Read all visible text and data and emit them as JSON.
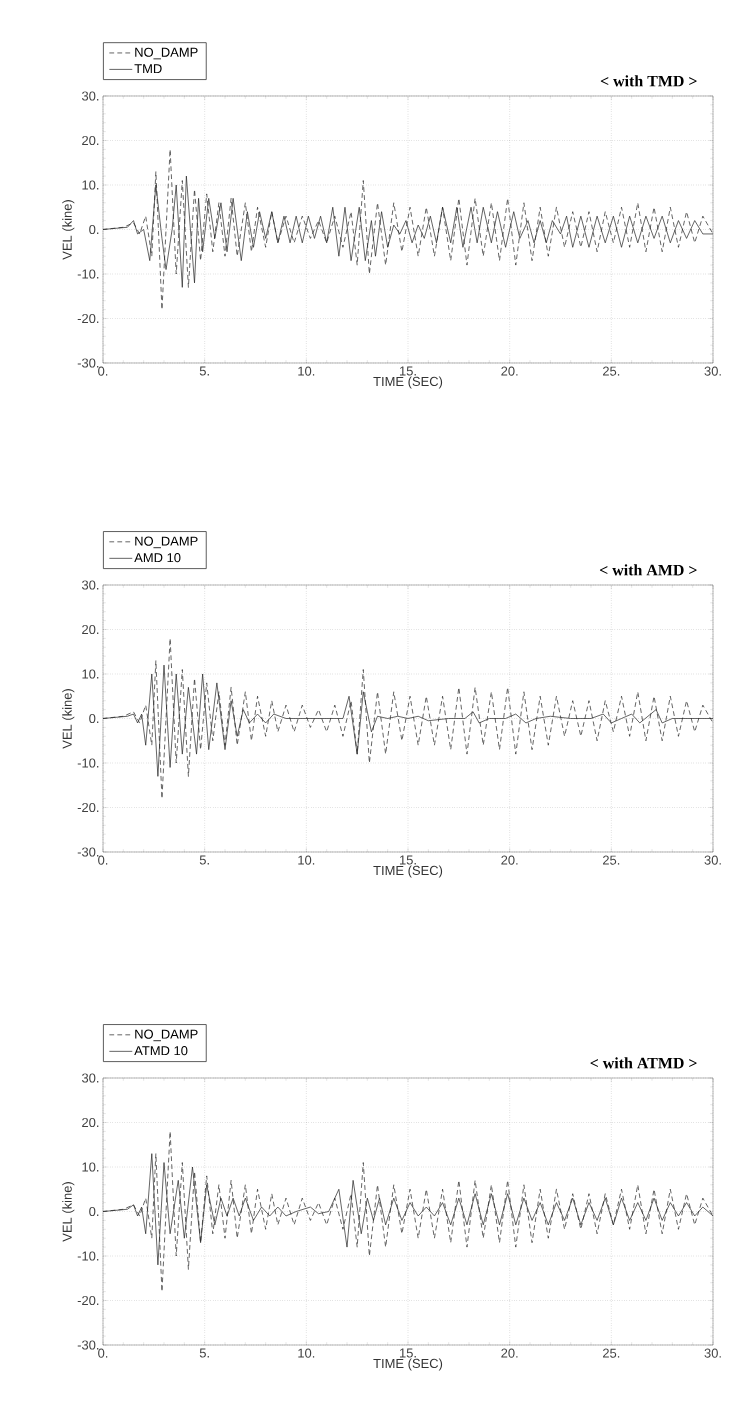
{
  "chart_data": [
    {
      "type": "line",
      "title": "< with TMD >",
      "xlabel": "TIME (SEC)",
      "ylabel": "VEL (kine)",
      "xlim": [
        0,
        30
      ],
      "ylim": [
        -30,
        30
      ],
      "xticks": [
        {
          "value": 0,
          "label": "0."
        },
        {
          "value": 5,
          "label": "5."
        },
        {
          "value": 10,
          "label": "10."
        },
        {
          "value": 15,
          "label": "15."
        },
        {
          "value": 20,
          "label": "20."
        },
        {
          "value": 25,
          "label": "25."
        },
        {
          "value": 30,
          "label": "30."
        }
      ],
      "yticks": [
        {
          "value": -30,
          "label": "-30."
        },
        {
          "value": -20,
          "label": "-20."
        },
        {
          "value": -10,
          "label": "-10."
        },
        {
          "value": 0,
          "label": "0."
        },
        {
          "value": 10,
          "label": "10."
        },
        {
          "value": 20,
          "label": "20."
        },
        {
          "value": 30,
          "label": "30."
        }
      ],
      "grid": true,
      "legend": "top left",
      "series": [
        {
          "name": "NO_DAMP",
          "color": "#222222",
          "line_style": "dashed",
          "x": [
            0,
            1.0,
            1.5,
            1.8,
            2.1,
            2.4,
            2.6,
            2.9,
            3.3,
            3.6,
            3.9,
            4.2,
            4.5,
            4.8,
            5.1,
            5.4,
            5.7,
            6.0,
            6.3,
            6.6,
            7.0,
            7.3,
            7.6,
            8.0,
            8.3,
            8.6,
            9.0,
            9.4,
            9.8,
            10.2,
            10.6,
            11.0,
            11.4,
            11.8,
            12.2,
            12.5,
            12.8,
            13.1,
            13.5,
            13.9,
            14.3,
            14.7,
            15.1,
            15.5,
            15.9,
            16.3,
            16.7,
            17.1,
            17.5,
            17.9,
            18.3,
            18.7,
            19.1,
            19.5,
            19.9,
            20.3,
            20.7,
            21.1,
            21.5,
            21.9,
            22.3,
            22.7,
            23.1,
            23.5,
            23.9,
            24.3,
            24.7,
            25.1,
            25.5,
            25.9,
            26.3,
            26.7,
            27.1,
            27.5,
            27.9,
            28.3,
            28.7,
            29.1,
            29.5,
            30
          ],
          "values": [
            0,
            0.5,
            1.5,
            -1,
            3,
            -6,
            13,
            -18,
            18,
            -10,
            11,
            -13,
            9,
            -7,
            8,
            -5,
            6,
            -6,
            7,
            -6,
            6,
            -5,
            5,
            -4,
            4,
            -3,
            3,
            -3,
            3,
            -2,
            2,
            -3,
            3,
            -4,
            4,
            -8,
            11,
            -10,
            6,
            -8,
            6,
            -5,
            5,
            -6,
            5,
            -6,
            5,
            -7,
            7,
            -8,
            7,
            -6,
            6,
            -7,
            7,
            -8,
            6,
            -7,
            5,
            -6,
            5,
            -4,
            4,
            -4,
            4,
            -5,
            4,
            -3,
            5,
            -4,
            6,
            -5,
            5,
            -5,
            5,
            -4,
            4,
            -3,
            3,
            -1
          ]
        },
        {
          "name": "TMD",
          "color": "#222222",
          "line_style": "solid",
          "x": [
            0,
            1.2,
            1.5,
            1.7,
            2.0,
            2.3,
            2.6,
            2.9,
            3.1,
            3.4,
            3.6,
            3.9,
            4.1,
            4.5,
            4.7,
            4.9,
            5.2,
            5.5,
            5.8,
            6.1,
            6.4,
            6.8,
            7.1,
            7.4,
            7.7,
            8.0,
            8.3,
            8.6,
            8.9,
            9.2,
            9.5,
            9.8,
            10.1,
            10.4,
            10.7,
            11.0,
            11.3,
            11.6,
            11.9,
            12.2,
            12.6,
            12.9,
            13.2,
            13.4,
            13.7,
            14.0,
            14.3,
            14.6,
            14.9,
            15.2,
            15.5,
            15.8,
            16.1,
            16.4,
            16.7,
            17.1,
            17.4,
            17.7,
            18.1,
            18.4,
            18.7,
            19.1,
            19.4,
            19.8,
            20.2,
            20.5,
            20.9,
            21.2,
            21.5,
            21.8,
            22.1,
            22.5,
            22.8,
            23.1,
            23.5,
            23.9,
            24.3,
            24.7,
            25.1,
            25.5,
            25.9,
            26.3,
            26.7,
            27.1,
            27.5,
            27.9,
            28.3,
            28.7,
            29.1,
            29.5,
            30
          ],
          "values": [
            0,
            0.5,
            2,
            -1,
            0,
            -7,
            10,
            -2,
            -9,
            0,
            10,
            -13,
            12,
            -12,
            7,
            -5,
            7,
            -2,
            6,
            -5,
            7,
            -7,
            4,
            -4,
            4,
            -2,
            4,
            -3,
            3,
            -3,
            3,
            -3,
            3,
            -2,
            3,
            -3,
            5,
            -6,
            5,
            -7,
            5,
            -7,
            2,
            -6,
            4,
            -4,
            1,
            -1,
            2,
            -3,
            1,
            -2,
            3,
            -3,
            5,
            -3,
            5,
            -4,
            5,
            -3,
            5,
            -3,
            4,
            -4,
            4,
            -2,
            2,
            -3,
            2,
            -3,
            2,
            -1,
            3,
            -4,
            3,
            -4,
            3,
            -3,
            3,
            -4,
            3,
            -3,
            3,
            -2,
            3,
            -3,
            2,
            -2,
            2,
            -1,
            -1
          ]
        }
      ]
    },
    {
      "type": "line",
      "title": "< with AMD >",
      "xlabel": "TIME (SEC)",
      "ylabel": "VEL (kine)",
      "xlim": [
        0,
        30
      ],
      "ylim": [
        -30,
        30
      ],
      "xticks": [
        {
          "value": 0,
          "label": "0."
        },
        {
          "value": 5,
          "label": "5."
        },
        {
          "value": 10,
          "label": "10."
        },
        {
          "value": 15,
          "label": "15."
        },
        {
          "value": 20,
          "label": "20."
        },
        {
          "value": 25,
          "label": "25."
        },
        {
          "value": 30,
          "label": "30."
        }
      ],
      "yticks": [
        {
          "value": -30,
          "label": "-30."
        },
        {
          "value": -20,
          "label": "-20."
        },
        {
          "value": -10,
          "label": "-10."
        },
        {
          "value": 0,
          "label": "0."
        },
        {
          "value": 10,
          "label": "10."
        },
        {
          "value": 20,
          "label": "20."
        },
        {
          "value": 30,
          "label": "30."
        }
      ],
      "grid": true,
      "legend": "top left",
      "series": [
        {
          "name": "NO_DAMP",
          "color": "#222222",
          "line_style": "dashed",
          "x": [
            0,
            1.0,
            1.5,
            1.8,
            2.1,
            2.4,
            2.6,
            2.9,
            3.3,
            3.6,
            3.9,
            4.2,
            4.5,
            4.8,
            5.1,
            5.4,
            5.7,
            6.0,
            6.3,
            6.6,
            7.0,
            7.3,
            7.6,
            8.0,
            8.3,
            8.6,
            9.0,
            9.4,
            9.8,
            10.2,
            10.6,
            11.0,
            11.4,
            11.8,
            12.2,
            12.5,
            12.8,
            13.1,
            13.5,
            13.9,
            14.3,
            14.7,
            15.1,
            15.5,
            15.9,
            16.3,
            16.7,
            17.1,
            17.5,
            17.9,
            18.3,
            18.7,
            19.1,
            19.5,
            19.9,
            20.3,
            20.7,
            21.1,
            21.5,
            21.9,
            22.3,
            22.7,
            23.1,
            23.5,
            23.9,
            24.3,
            24.7,
            25.1,
            25.5,
            25.9,
            26.3,
            26.7,
            27.1,
            27.5,
            27.9,
            28.3,
            28.7,
            29.1,
            29.5,
            30
          ],
          "values": [
            0,
            0.5,
            1.5,
            -1,
            3,
            -6,
            13,
            -18,
            18,
            -10,
            11,
            -13,
            9,
            -7,
            8,
            -5,
            6,
            -6,
            7,
            -6,
            6,
            -5,
            5,
            -4,
            4,
            -3,
            3,
            -3,
            3,
            -2,
            2,
            -3,
            3,
            -4,
            4,
            -8,
            11,
            -10,
            6,
            -8,
            6,
            -5,
            5,
            -6,
            5,
            -6,
            5,
            -7,
            7,
            -8,
            7,
            -6,
            6,
            -7,
            7,
            -8,
            6,
            -7,
            5,
            -6,
            5,
            -4,
            4,
            -4,
            4,
            -5,
            4,
            -3,
            5,
            -4,
            6,
            -5,
            5,
            -5,
            5,
            -4,
            4,
            -3,
            3,
            -1
          ]
        },
        {
          "name": "AMD 10",
          "color": "#222222",
          "line_style": "solid",
          "x": [
            0,
            1.2,
            1.5,
            1.7,
            1.9,
            2.1,
            2.4,
            2.7,
            3.0,
            3.3,
            3.6,
            3.9,
            4.2,
            4.6,
            4.9,
            5.2,
            5.6,
            6.0,
            6.3,
            6.6,
            6.9,
            7.2,
            7.6,
            8.0,
            8.4,
            9.0,
            10,
            11,
            11.8,
            12.1,
            12.5,
            12.8,
            13.2,
            13.5,
            14,
            14.5,
            15,
            15.5,
            16,
            17,
            17.8,
            18.2,
            18.5,
            19,
            19.8,
            20.3,
            20.8,
            21.3,
            22,
            23,
            24,
            24.6,
            25.0,
            25.5,
            26,
            26.4,
            26.8,
            27.2,
            27.5,
            28,
            29,
            30
          ],
          "values": [
            0,
            0.5,
            1,
            -1,
            1,
            -6,
            10,
            -13,
            12,
            -11,
            10,
            -8,
            7,
            -8,
            10,
            -7,
            8,
            -7,
            4,
            -4,
            2,
            -1,
            1,
            -1,
            1,
            0,
            0,
            0,
            0,
            5,
            -8,
            6,
            -3,
            0.5,
            0,
            0.5,
            0,
            0.5,
            -0.5,
            0,
            0,
            1.5,
            -1,
            0,
            0,
            1,
            -1,
            0,
            0.5,
            0,
            0,
            1,
            -1,
            0,
            1,
            -1,
            0.5,
            2,
            -1,
            0,
            0,
            0
          ]
        }
      ]
    },
    {
      "type": "line",
      "title": "< with ATMD >",
      "xlabel": "TIME (SEC)",
      "ylabel": "VEL (kine)",
      "xlim": [
        0,
        30
      ],
      "ylim": [
        -30,
        30
      ],
      "xticks": [
        {
          "value": 0,
          "label": "0."
        },
        {
          "value": 5,
          "label": "5."
        },
        {
          "value": 10,
          "label": "10."
        },
        {
          "value": 15,
          "label": "15."
        },
        {
          "value": 20,
          "label": "20."
        },
        {
          "value": 25,
          "label": "25."
        },
        {
          "value": 30,
          "label": "30."
        }
      ],
      "yticks": [
        {
          "value": -30,
          "label": "-30."
        },
        {
          "value": -20,
          "label": "-20."
        },
        {
          "value": -10,
          "label": "-10."
        },
        {
          "value": 0,
          "label": "0."
        },
        {
          "value": 10,
          "label": "10."
        },
        {
          "value": 20,
          "label": "20."
        },
        {
          "value": 30,
          "label": "30."
        }
      ],
      "grid": true,
      "legend": "top left",
      "series": [
        {
          "name": "NO_DAMP",
          "color": "#222222",
          "line_style": "dashed",
          "x": [
            0,
            1.0,
            1.5,
            1.8,
            2.1,
            2.4,
            2.6,
            2.9,
            3.3,
            3.6,
            3.9,
            4.2,
            4.5,
            4.8,
            5.1,
            5.4,
            5.7,
            6.0,
            6.3,
            6.6,
            7.0,
            7.3,
            7.6,
            8.0,
            8.3,
            8.6,
            9.0,
            9.4,
            9.8,
            10.2,
            10.6,
            11.0,
            11.4,
            11.8,
            12.2,
            12.5,
            12.8,
            13.1,
            13.5,
            13.9,
            14.3,
            14.7,
            15.1,
            15.5,
            15.9,
            16.3,
            16.7,
            17.1,
            17.5,
            17.9,
            18.3,
            18.7,
            19.1,
            19.5,
            19.9,
            20.3,
            20.7,
            21.1,
            21.5,
            21.9,
            22.3,
            22.7,
            23.1,
            23.5,
            23.9,
            24.3,
            24.7,
            25.1,
            25.5,
            25.9,
            26.3,
            26.7,
            27.1,
            27.5,
            27.9,
            28.3,
            28.7,
            29.1,
            29.5,
            30
          ],
          "values": [
            0,
            0.5,
            1.5,
            -1,
            3,
            -6,
            13,
            -18,
            18,
            -10,
            11,
            -13,
            9,
            -7,
            8,
            -5,
            6,
            -6,
            7,
            -6,
            6,
            -5,
            5,
            -4,
            4,
            -3,
            3,
            -3,
            3,
            -2,
            2,
            -3,
            3,
            -4,
            4,
            -8,
            11,
            -10,
            6,
            -8,
            6,
            -5,
            5,
            -6,
            5,
            -6,
            5,
            -7,
            7,
            -8,
            7,
            -6,
            6,
            -7,
            7,
            -8,
            6,
            -7,
            5,
            -6,
            5,
            -4,
            4,
            -4,
            4,
            -5,
            4,
            -3,
            5,
            -4,
            6,
            -5,
            5,
            -5,
            5,
            -4,
            4,
            -3,
            3,
            -1
          ]
        },
        {
          "name": "ATMD 10",
          "color": "#222222",
          "line_style": "solid",
          "x": [
            0,
            1.2,
            1.5,
            1.7,
            1.9,
            2.1,
            2.4,
            2.7,
            3.0,
            3.3,
            3.7,
            4.0,
            4.4,
            4.8,
            5.1,
            5.5,
            5.8,
            6.1,
            6.4,
            6.7,
            7.0,
            7.4,
            7.8,
            8.2,
            8.6,
            9.0,
            9.5,
            10.2,
            10.6,
            11.1,
            11.6,
            12.0,
            12.3,
            12.7,
            13.0,
            13.3,
            13.6,
            13.9,
            14.3,
            14.7,
            15.1,
            15.5,
            15.9,
            16.3,
            16.7,
            17.1,
            17.5,
            17.9,
            18.3,
            18.7,
            19.1,
            19.5,
            19.9,
            20.3,
            20.7,
            21.1,
            21.5,
            21.9,
            22.3,
            22.7,
            23.1,
            23.5,
            23.9,
            24.3,
            24.7,
            25.1,
            25.5,
            25.9,
            26.3,
            26.7,
            27.1,
            27.5,
            27.9,
            28.3,
            28.7,
            29.1,
            29.5,
            30
          ],
          "values": [
            0,
            0.5,
            1.5,
            -1,
            1,
            -5,
            13,
            -12,
            11,
            -5,
            7,
            -6,
            10,
            -7,
            6,
            -3,
            3,
            -1,
            3,
            -1,
            3,
            -2,
            1,
            -1,
            1,
            -1,
            0,
            1,
            -0.5,
            0,
            5,
            -8,
            7,
            -5,
            3,
            -2,
            3,
            -3,
            3,
            -2,
            2,
            -1,
            1,
            -1,
            2,
            -3,
            3,
            -3,
            4,
            -3,
            4,
            -3,
            4,
            -3,
            3,
            -2,
            2,
            -3,
            2,
            -2,
            3,
            -3,
            2,
            -2,
            3,
            -3,
            3,
            -2,
            2,
            -2,
            3,
            -2,
            2,
            -1,
            2,
            -1,
            1,
            -1
          ]
        }
      ]
    }
  ]
}
